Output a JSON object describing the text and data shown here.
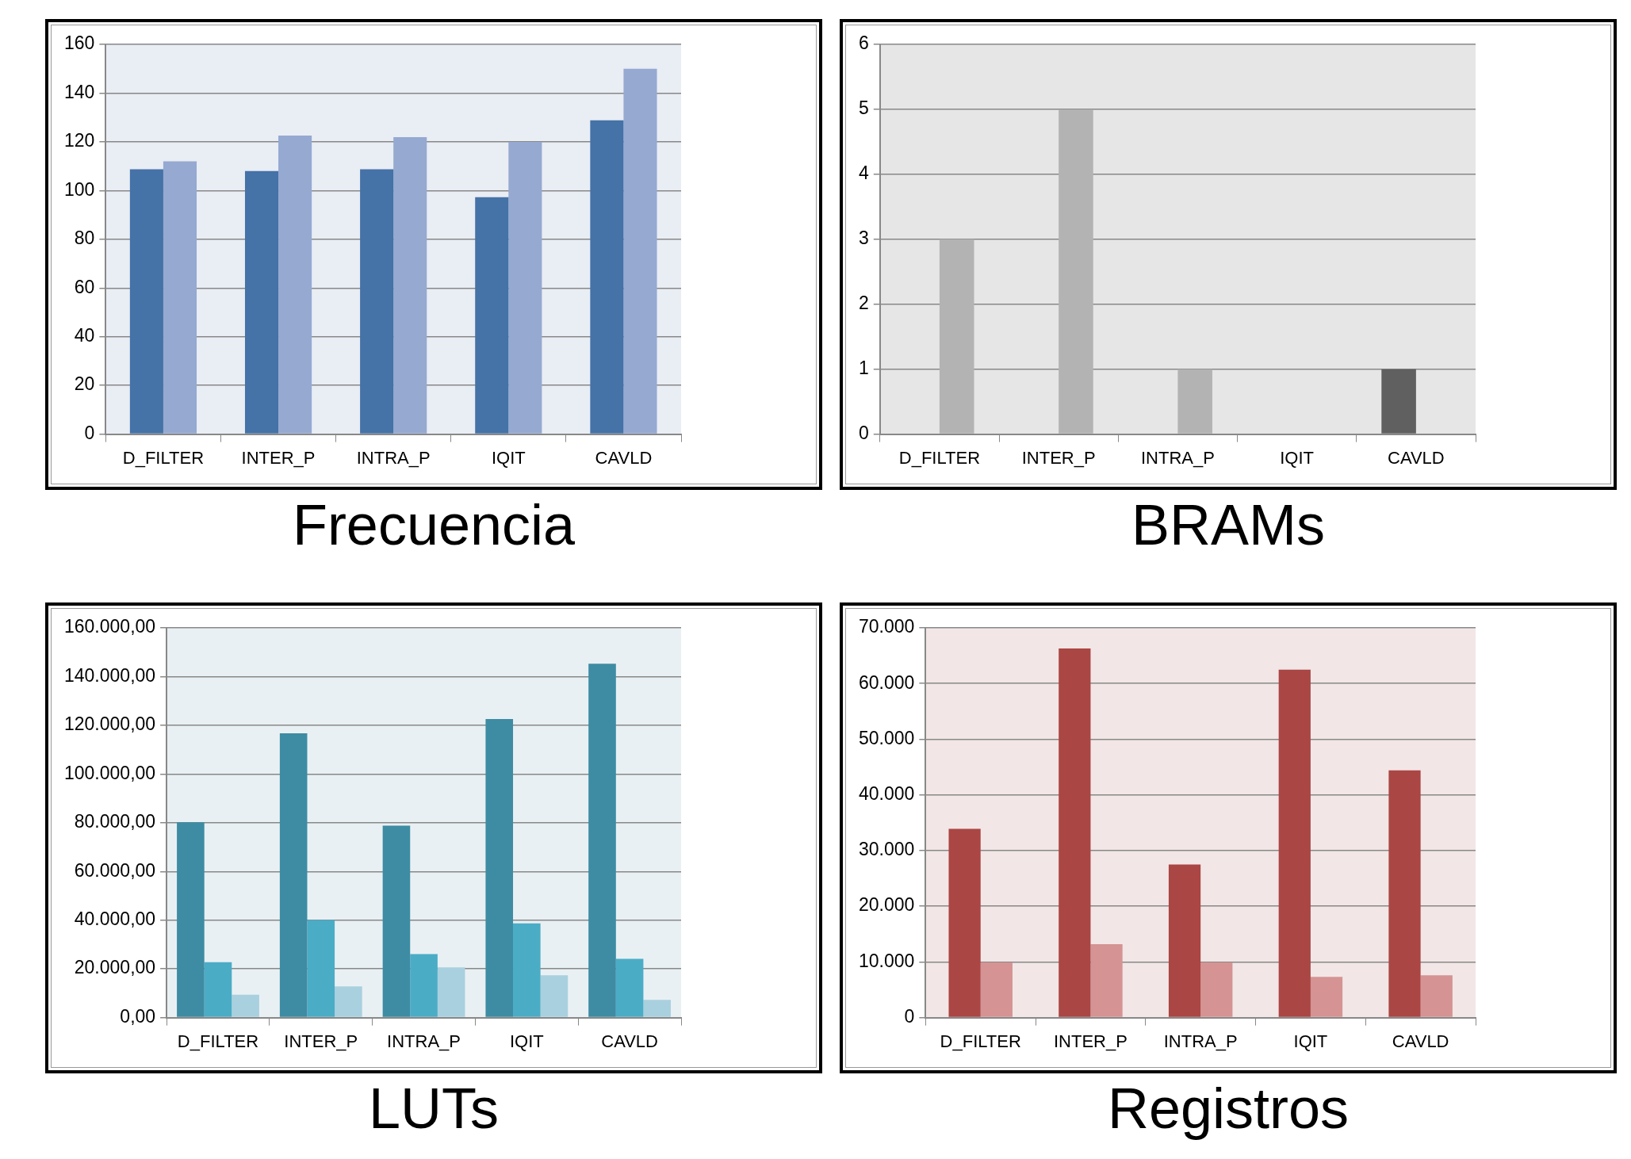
{
  "chart_data": [
    {
      "type": "bar",
      "title": "Frecuencia",
      "categories": [
        "D_FILTER",
        "INTER_P",
        "INTRA_P",
        "IQIT",
        "CAVLD"
      ],
      "series": [
        {
          "color": "#4572a7",
          "values": [
            108.7,
            108,
            108.7,
            97.3,
            128.8
          ]
        },
        {
          "color": "#95a9d1",
          "values": [
            112,
            122.6,
            121.9,
            120,
            150
          ]
        }
      ],
      "ylim": [
        0,
        160
      ],
      "yticks": [
        0,
        20,
        40,
        60,
        80,
        100,
        120,
        140,
        160
      ],
      "grid": "y"
    },
    {
      "type": "bar",
      "title": "BRAMs",
      "categories": [
        "D_FILTER",
        "INTER_P",
        "INTRA_P",
        "IQIT",
        "CAVLD"
      ],
      "series": [
        {
          "color": "#606060",
          "values": [
            0,
            0,
            0,
            0,
            1
          ]
        },
        {
          "color": "#b3b3b3",
          "values": [
            3,
            5,
            1,
            0,
            0
          ]
        }
      ],
      "ylim": [
        0,
        6
      ],
      "yticks": [
        0,
        1,
        2,
        3,
        4,
        5,
        6
      ],
      "grid": "y"
    },
    {
      "type": "bar",
      "title": "LUTs",
      "categories": [
        "D_FILTER",
        "INTER_P",
        "INTRA_P",
        "IQIT",
        "CAVLD"
      ],
      "series": [
        {
          "color": "#3d8ca3",
          "values": [
            80200,
            116700,
            78800,
            122600,
            145300
          ]
        },
        {
          "color": "#4bacc6",
          "values": [
            22700,
            40100,
            26100,
            38700,
            24100
          ]
        },
        {
          "color": "#a9d0de",
          "values": [
            9400,
            12800,
            20600,
            17400,
            7300
          ]
        }
      ],
      "ylim": [
        0,
        160000
      ],
      "yticks": [
        {
          "value": 0,
          "label": "0,00"
        },
        {
          "value": 20000,
          "label": "20.000,00"
        },
        {
          "value": 40000,
          "label": "40.000,00"
        },
        {
          "value": 60000,
          "label": "60.000,00"
        },
        {
          "value": 80000,
          "label": "80.000,00"
        },
        {
          "value": 100000,
          "label": "100.000,00"
        },
        {
          "value": 120000,
          "label": "120.000,00"
        },
        {
          "value": 140000,
          "label": "140.000,00"
        },
        {
          "value": 160000,
          "label": "160.000,00"
        }
      ],
      "grid": "y"
    },
    {
      "type": "bar",
      "title": "Registros",
      "categories": [
        "D_FILTER",
        "INTER_P",
        "INTRA_P",
        "IQIT",
        "CAVLD"
      ],
      "series": [
        {
          "color": "#aa4644",
          "values": [
            33900,
            66300,
            27500,
            62500,
            44400
          ]
        },
        {
          "color": "#d59393",
          "values": [
            9900,
            13200,
            9900,
            7300,
            7600
          ]
        }
      ],
      "ylim": [
        0,
        70000
      ],
      "yticks": [
        0,
        {
          "value": 10000,
          "label": "10.000"
        },
        {
          "value": 20000,
          "label": "20.000"
        },
        {
          "value": 30000,
          "label": "30.000"
        },
        {
          "value": 40000,
          "label": "40.000"
        },
        {
          "value": 50000,
          "label": "50.000"
        },
        {
          "value": 60000,
          "label": "60.000"
        },
        {
          "value": 70000,
          "label": "70.000"
        }
      ],
      "grid": "y"
    }
  ]
}
